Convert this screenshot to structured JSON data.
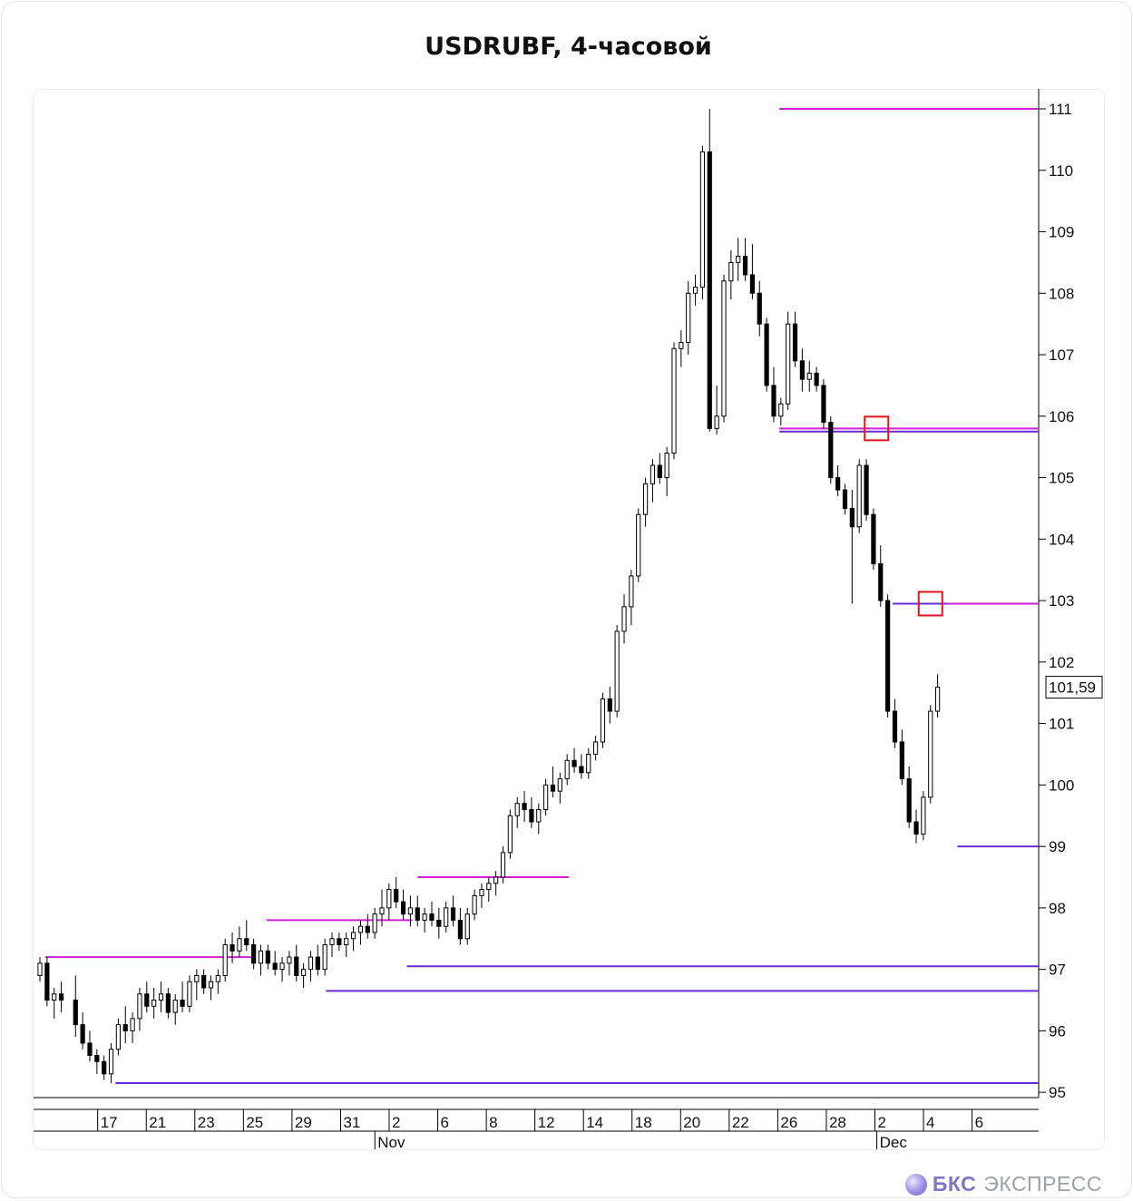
{
  "header": {
    "title": "USDRUBF, 4-часовой"
  },
  "branding": {
    "name": "БКС",
    "suffix": "ЭКСПРЕСС"
  },
  "chart_data": {
    "type": "candlestick",
    "title": "USDRUBF, 4-часовой",
    "ylim": [
      94.9,
      111.3
    ],
    "y_ticks": [
      95,
      96,
      97,
      98,
      99,
      100,
      101,
      102,
      103,
      104,
      105,
      106,
      107,
      108,
      109,
      110,
      111
    ],
    "last_price_label": "101,59",
    "last_price": 101.59,
    "date_ticks": [
      {
        "label": "17",
        "bar": 6
      },
      {
        "label": "21",
        "bar": 15
      },
      {
        "label": "23",
        "bar": 24
      },
      {
        "label": "25",
        "bar": 33
      },
      {
        "label": "29",
        "bar": 42
      },
      {
        "label": "31",
        "bar": 51
      },
      {
        "label": "2",
        "bar": 60
      },
      {
        "label": "6",
        "bar": 69
      },
      {
        "label": "8",
        "bar": 78
      },
      {
        "label": "12",
        "bar": 87
      },
      {
        "label": "14",
        "bar": 96
      },
      {
        "label": "18",
        "bar": 105
      },
      {
        "label": "20",
        "bar": 114
      },
      {
        "label": "22",
        "bar": 123
      },
      {
        "label": "26",
        "bar": 132
      },
      {
        "label": "28",
        "bar": 141
      },
      {
        "label": "2",
        "bar": 150
      },
      {
        "label": "4",
        "bar": 159
      },
      {
        "label": "6",
        "bar": 168
      }
    ],
    "month_ticks": [
      {
        "label": "Nov",
        "bar": 55
      },
      {
        "label": "Dec",
        "bar": 148
      }
    ],
    "resistance_levels": [
      {
        "price": 97.2,
        "from_bar": 1,
        "to_bar": 40
      },
      {
        "price": 97.8,
        "from_bar": 42,
        "to_bar": 69
      },
      {
        "price": 98.5,
        "from_bar": 70,
        "to_bar": 98
      },
      {
        "price": 111.0,
        "from_bar": 137,
        "to_bar": 186
      },
      {
        "price": 105.8,
        "from_bar": 137,
        "to_bar": 186
      },
      {
        "price": 102.95,
        "from_bar": 158,
        "to_bar": 186
      }
    ],
    "support_levels": [
      {
        "price": 95.15,
        "from_bar": 14,
        "to_bar": 186
      },
      {
        "price": 96.65,
        "from_bar": 53,
        "to_bar": 186
      },
      {
        "price": 97.05,
        "from_bar": 68,
        "to_bar": 186
      },
      {
        "price": 105.75,
        "from_bar": 137,
        "to_bar": 186
      },
      {
        "price": 102.95,
        "from_bar": 158,
        "to_bar": 168
      },
      {
        "price": 99.0,
        "from_bar": 170,
        "to_bar": 186
      }
    ],
    "highlights": [
      {
        "bar": 155,
        "price": 105.8
      },
      {
        "bar": 165,
        "price": 102.95
      }
    ],
    "candles": [
      [
        96.9,
        97.2,
        96.8,
        97.1
      ],
      [
        97.1,
        97.2,
        96.4,
        96.5
      ],
      [
        96.5,
        96.7,
        96.2,
        96.6
      ],
      [
        96.6,
        96.8,
        96.3,
        96.5
      ],
      [
        96.5,
        96.9,
        95.9,
        96.1
      ],
      [
        96.1,
        96.3,
        95.7,
        95.8
      ],
      [
        95.8,
        96.0,
        95.5,
        95.6
      ],
      [
        95.6,
        95.7,
        95.3,
        95.5
      ],
      [
        95.5,
        95.6,
        95.2,
        95.3
      ],
      [
        95.3,
        95.8,
        95.15,
        95.7
      ],
      [
        95.7,
        96.2,
        95.6,
        96.1
      ],
      [
        96.1,
        96.4,
        95.8,
        96.0
      ],
      [
        96.0,
        96.3,
        95.8,
        96.2
      ],
      [
        96.2,
        96.7,
        96.0,
        96.6
      ],
      [
        96.6,
        96.8,
        96.3,
        96.4
      ],
      [
        96.4,
        96.7,
        96.2,
        96.5
      ],
      [
        96.5,
        96.8,
        96.3,
        96.6
      ],
      [
        96.6,
        96.7,
        96.2,
        96.3
      ],
      [
        96.3,
        96.6,
        96.1,
        96.5
      ],
      [
        96.5,
        96.8,
        96.3,
        96.4
      ],
      [
        96.4,
        96.9,
        96.3,
        96.8
      ],
      [
        96.8,
        97.0,
        96.5,
        96.9
      ],
      [
        96.9,
        97.0,
        96.6,
        96.7
      ],
      [
        96.7,
        96.9,
        96.5,
        96.8
      ],
      [
        96.8,
        97.0,
        96.6,
        96.9
      ],
      [
        96.9,
        97.5,
        96.8,
        97.4
      ],
      [
        97.4,
        97.6,
        97.1,
        97.3
      ],
      [
        97.3,
        97.7,
        97.2,
        97.5
      ],
      [
        97.5,
        97.8,
        97.3,
        97.4
      ],
      [
        97.4,
        97.5,
        97.0,
        97.1
      ],
      [
        97.1,
        97.4,
        96.9,
        97.3
      ],
      [
        97.3,
        97.4,
        97.0,
        97.1
      ],
      [
        97.1,
        97.3,
        96.9,
        97.0
      ],
      [
        97.0,
        97.2,
        96.8,
        97.1
      ],
      [
        97.1,
        97.3,
        96.9,
        97.2
      ],
      [
        97.2,
        97.4,
        96.8,
        96.9
      ],
      [
        96.9,
        97.1,
        96.7,
        97.0
      ],
      [
        97.0,
        97.3,
        96.8,
        97.2
      ],
      [
        97.2,
        97.4,
        96.9,
        97.0
      ],
      [
        97.0,
        97.5,
        96.9,
        97.4
      ],
      [
        97.4,
        97.6,
        97.2,
        97.5
      ],
      [
        97.5,
        97.6,
        97.3,
        97.4
      ],
      [
        97.4,
        97.6,
        97.2,
        97.5
      ],
      [
        97.5,
        97.7,
        97.3,
        97.6
      ],
      [
        97.6,
        97.8,
        97.4,
        97.7
      ],
      [
        97.7,
        97.9,
        97.5,
        97.6
      ],
      [
        97.6,
        98.0,
        97.5,
        97.9
      ],
      [
        97.9,
        98.3,
        97.7,
        98.0
      ],
      [
        98.0,
        98.4,
        97.8,
        98.3
      ],
      [
        98.3,
        98.5,
        98.0,
        98.1
      ],
      [
        98.1,
        98.3,
        97.8,
        97.9
      ],
      [
        97.9,
        98.2,
        97.7,
        98.0
      ],
      [
        98.0,
        98.2,
        97.7,
        97.8
      ],
      [
        97.8,
        98.0,
        97.6,
        97.9
      ],
      [
        97.9,
        98.1,
        97.7,
        97.8
      ],
      [
        97.8,
        98.0,
        97.5,
        97.7
      ],
      [
        97.7,
        98.1,
        97.6,
        98.0
      ],
      [
        98.0,
        98.2,
        97.7,
        97.8
      ],
      [
        97.8,
        98.0,
        97.4,
        97.5
      ],
      [
        97.5,
        98.0,
        97.4,
        97.9
      ],
      [
        97.9,
        98.3,
        97.8,
        98.2
      ],
      [
        98.2,
        98.4,
        98.0,
        98.3
      ],
      [
        98.3,
        98.5,
        98.1,
        98.4
      ],
      [
        98.4,
        98.6,
        98.2,
        98.5
      ],
      [
        98.5,
        99.0,
        98.4,
        98.9
      ],
      [
        98.9,
        99.6,
        98.8,
        99.5
      ],
      [
        99.5,
        99.8,
        99.3,
        99.7
      ],
      [
        99.7,
        99.9,
        99.4,
        99.6
      ],
      [
        99.6,
        99.8,
        99.3,
        99.4
      ],
      [
        99.4,
        99.7,
        99.2,
        99.6
      ],
      [
        99.6,
        100.1,
        99.5,
        100.0
      ],
      [
        100.0,
        100.3,
        99.8,
        99.9
      ],
      [
        99.9,
        100.2,
        99.7,
        100.1
      ],
      [
        100.1,
        100.5,
        100.0,
        100.4
      ],
      [
        100.4,
        100.6,
        100.2,
        100.3
      ],
      [
        100.3,
        100.5,
        100.1,
        100.2
      ],
      [
        100.2,
        100.6,
        100.1,
        100.5
      ],
      [
        100.5,
        100.8,
        100.4,
        100.7
      ],
      [
        100.7,
        101.5,
        100.6,
        101.4
      ],
      [
        101.4,
        101.6,
        101.0,
        101.2
      ],
      [
        101.2,
        102.6,
        101.1,
        102.5
      ],
      [
        102.5,
        103.1,
        102.3,
        102.9
      ],
      [
        102.9,
        103.5,
        102.6,
        103.4
      ],
      [
        103.4,
        104.5,
        103.3,
        104.4
      ],
      [
        104.4,
        105.0,
        104.2,
        104.9
      ],
      [
        104.9,
        105.3,
        104.6,
        105.2
      ],
      [
        105.2,
        105.4,
        104.9,
        105.0
      ],
      [
        105.0,
        105.5,
        104.7,
        105.4
      ],
      [
        105.4,
        107.2,
        105.3,
        107.1
      ],
      [
        107.1,
        107.4,
        106.8,
        107.2
      ],
      [
        107.2,
        108.2,
        107.0,
        108.0
      ],
      [
        108.0,
        108.3,
        107.8,
        108.1
      ],
      [
        108.1,
        110.4,
        107.9,
        110.3
      ],
      [
        110.3,
        111.0,
        105.75,
        105.8
      ],
      [
        105.8,
        106.5,
        105.7,
        106.0
      ],
      [
        106.0,
        108.3,
        105.9,
        108.2
      ],
      [
        108.2,
        108.7,
        107.9,
        108.5
      ],
      [
        108.5,
        108.9,
        108.2,
        108.6
      ],
      [
        108.6,
        108.9,
        108.2,
        108.3
      ],
      [
        108.3,
        108.8,
        107.9,
        108.0
      ],
      [
        108.0,
        108.2,
        107.3,
        107.5
      ],
      [
        107.5,
        107.6,
        106.4,
        106.5
      ],
      [
        106.5,
        106.8,
        105.9,
        106.0
      ],
      [
        106.0,
        106.3,
        105.85,
        106.2
      ],
      [
        106.2,
        107.7,
        106.1,
        107.5
      ],
      [
        107.5,
        107.7,
        106.8,
        106.9
      ],
      [
        106.9,
        107.1,
        106.4,
        106.6
      ],
      [
        106.6,
        106.9,
        106.4,
        106.7
      ],
      [
        106.7,
        106.8,
        106.4,
        106.5
      ],
      [
        106.5,
        106.6,
        105.8,
        105.9
      ],
      [
        105.9,
        106.0,
        104.9,
        105.0
      ],
      [
        105.0,
        105.2,
        104.7,
        104.8
      ],
      [
        104.8,
        104.9,
        104.4,
        104.5
      ],
      [
        104.5,
        104.8,
        102.95,
        104.2
      ],
      [
        104.2,
        105.3,
        104.1,
        105.2
      ],
      [
        105.2,
        105.3,
        104.3,
        104.4
      ],
      [
        104.4,
        104.5,
        103.5,
        103.6
      ],
      [
        103.6,
        103.9,
        102.9,
        103.0
      ],
      [
        103.0,
        103.1,
        101.1,
        101.2
      ],
      [
        101.2,
        101.4,
        100.6,
        100.7
      ],
      [
        100.7,
        100.9,
        100.0,
        100.1
      ],
      [
        100.1,
        100.3,
        99.3,
        99.4
      ],
      [
        99.4,
        99.6,
        99.05,
        99.2
      ],
      [
        99.2,
        99.9,
        99.1,
        99.8
      ],
      [
        99.8,
        101.3,
        99.7,
        101.2
      ],
      [
        101.2,
        101.8,
        101.1,
        101.59
      ]
    ],
    "candle_bar_map": [
      0,
      1,
      2,
      3,
      5,
      6,
      7,
      8,
      9,
      10,
      11,
      12,
      13,
      14,
      15,
      16,
      17,
      18,
      19,
      20,
      21,
      22,
      23,
      24,
      25,
      26,
      27,
      28,
      29,
      30,
      31,
      32,
      33,
      34,
      35,
      36,
      37,
      38,
      39,
      40,
      41,
      42,
      43,
      44,
      45,
      46,
      47,
      48,
      49,
      50,
      51,
      52,
      53,
      54,
      55,
      56,
      57,
      58,
      59,
      60,
      61,
      62,
      63,
      64,
      65,
      66,
      67,
      68,
      69,
      70,
      71,
      72,
      73,
      74,
      75,
      76,
      77,
      78,
      79,
      80,
      81,
      82,
      83,
      84,
      85,
      86,
      87,
      88,
      89,
      90,
      91,
      92,
      93,
      94,
      95,
      96,
      97,
      98,
      99,
      100,
      101,
      102,
      103,
      104,
      105,
      106,
      107,
      108,
      109,
      110,
      111,
      112,
      113,
      114,
      115,
      116,
      117,
      118,
      119,
      120,
      121,
      122,
      123,
      124,
      125,
      126
    ]
  }
}
